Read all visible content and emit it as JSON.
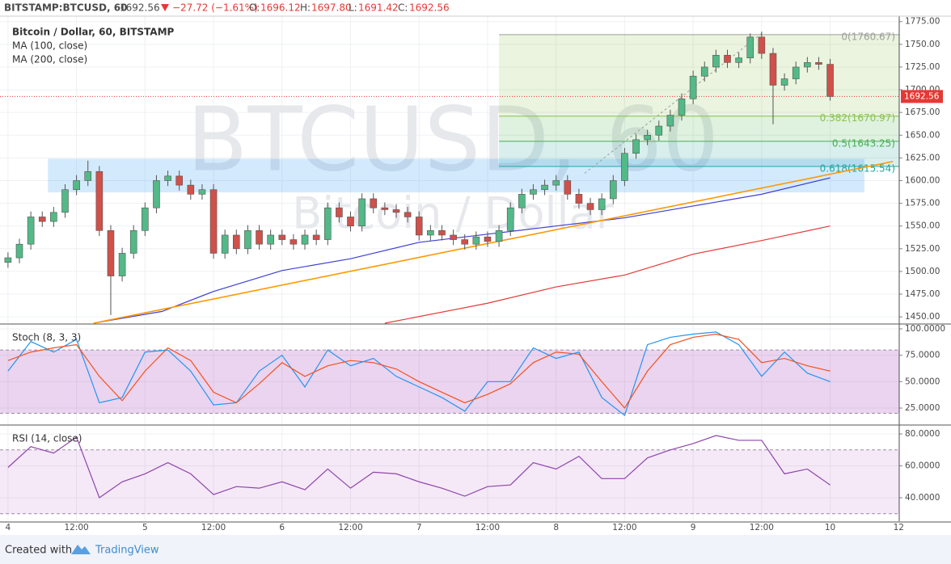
{
  "header": {
    "symbol": "BITSTAMP:BTCUSD, 60",
    "last": "1692.56",
    "change": "−27.72 (−1.61%)",
    "open_label": "O:",
    "open": "1696.12",
    "high_label": "H:",
    "high": "1697.80",
    "low_label": "L:",
    "low": "1691.42",
    "close_label": "C:",
    "close": "1692.56"
  },
  "footer": {
    "text": "Created with",
    "brand": "TradingView"
  },
  "chart_data": [
    {
      "type": "candlestick",
      "title": "Bitcoin / Dollar, 60, BITSTAMP",
      "watermark": "BTCUSD, 60",
      "watermark_subtitle": "Bitcoin / Dollar",
      "up_color": "#53b987",
      "down_color": "#d0504a",
      "x": [
        0,
        2,
        4,
        6,
        8,
        10,
        12,
        14,
        16,
        18,
        20,
        22,
        24,
        26,
        28,
        30,
        32,
        34,
        36,
        38,
        40,
        42,
        44,
        46,
        48,
        50,
        52,
        54,
        56,
        58,
        60,
        62,
        64,
        66,
        68,
        70,
        72,
        74,
        76,
        78,
        80,
        82,
        84,
        86,
        88,
        90,
        92,
        94,
        96,
        98,
        100,
        102,
        104,
        106,
        108,
        110,
        112,
        114,
        116,
        118,
        120,
        122,
        124,
        126,
        128,
        130,
        132,
        134,
        136,
        138,
        140,
        142,
        144
      ],
      "open": [
        1510,
        1515,
        1530,
        1560,
        1555,
        1565,
        1590,
        1600,
        1610,
        1545,
        1495,
        1520,
        1545,
        1570,
        1600,
        1605,
        1595,
        1585,
        1590,
        1520,
        1540,
        1525,
        1545,
        1530,
        1540,
        1535,
        1530,
        1540,
        1535,
        1570,
        1560,
        1550,
        1580,
        1570,
        1568,
        1565,
        1560,
        1540,
        1545,
        1540,
        1535,
        1530,
        1538,
        1533,
        1545,
        1570,
        1585,
        1590,
        1595,
        1600,
        1585,
        1575,
        1568,
        1580,
        1600,
        1630,
        1645,
        1650,
        1660,
        1672,
        1690,
        1715,
        1725,
        1738,
        1730,
        1735,
        1758,
        1740,
        1705,
        1712,
        1725,
        1730,
        1728
      ],
      "high": [
        1521,
        1536,
        1566,
        1566,
        1571,
        1596,
        1606,
        1622,
        1616,
        1551,
        1526,
        1551,
        1576,
        1606,
        1611,
        1611,
        1601,
        1596,
        1596,
        1546,
        1546,
        1551,
        1551,
        1546,
        1546,
        1541,
        1546,
        1546,
        1576,
        1576,
        1566,
        1586,
        1586,
        1576,
        1574,
        1571,
        1566,
        1551,
        1551,
        1546,
        1541,
        1544,
        1544,
        1551,
        1576,
        1591,
        1596,
        1601,
        1606,
        1606,
        1591,
        1581,
        1586,
        1606,
        1636,
        1651,
        1656,
        1666,
        1678,
        1696,
        1721,
        1731,
        1744,
        1744,
        1741,
        1762,
        1764,
        1746,
        1718,
        1731,
        1736,
        1736,
        1734
      ],
      "low": [
        1504,
        1509,
        1524,
        1549,
        1549,
        1559,
        1584,
        1594,
        1539,
        1452,
        1489,
        1514,
        1539,
        1564,
        1594,
        1589,
        1579,
        1579,
        1514,
        1514,
        1519,
        1519,
        1524,
        1524,
        1529,
        1524,
        1524,
        1529,
        1529,
        1554,
        1544,
        1544,
        1564,
        1562,
        1559,
        1554,
        1534,
        1534,
        1534,
        1529,
        1524,
        1524,
        1527,
        1527,
        1539,
        1564,
        1579,
        1584,
        1589,
        1579,
        1569,
        1562,
        1562,
        1574,
        1594,
        1624,
        1639,
        1644,
        1654,
        1666,
        1684,
        1709,
        1719,
        1724,
        1724,
        1729,
        1734,
        1662,
        1699,
        1706,
        1719,
        1722,
        1688
      ],
      "close": [
        1515,
        1530,
        1560,
        1555,
        1565,
        1590,
        1600,
        1610,
        1545,
        1495,
        1520,
        1545,
        1570,
        1600,
        1605,
        1595,
        1585,
        1590,
        1520,
        1540,
        1525,
        1545,
        1530,
        1540,
        1535,
        1530,
        1540,
        1535,
        1570,
        1560,
        1550,
        1580,
        1570,
        1568,
        1565,
        1560,
        1540,
        1545,
        1540,
        1535,
        1530,
        1538,
        1533,
        1545,
        1570,
        1585,
        1590,
        1595,
        1600,
        1585,
        1575,
        1568,
        1580,
        1600,
        1630,
        1645,
        1650,
        1660,
        1672,
        1690,
        1715,
        1725,
        1738,
        1730,
        1735,
        1758,
        1740,
        1705,
        1712,
        1725,
        1730,
        1728,
        1692.56
      ],
      "series": [
        {
          "name": "MA (100, close)",
          "color": "#3f3fd6",
          "x": [
            15,
            27,
            36,
            48,
            60,
            72,
            84,
            96,
            108,
            120,
            132,
            144
          ],
          "values": [
            1443,
            1456,
            1478,
            1501,
            1514,
            1532,
            1541,
            1550,
            1559,
            1572,
            1585,
            1603
          ]
        },
        {
          "name": "MA (200, close)",
          "color": "#e53935",
          "x": [
            66,
            84,
            96,
            108,
            120,
            132,
            144
          ],
          "values": [
            1443,
            1465,
            1483,
            1496,
            1519,
            1534,
            1550
          ]
        }
      ],
      "trendline": {
        "color": "#ff9800",
        "x": [
          15,
          155
        ],
        "values": [
          1443,
          1621
        ]
      },
      "zone": {
        "color": "#2196f3",
        "x": [
          7,
          150
        ],
        "values": [
          1587,
          1624
        ]
      },
      "fib_trend": {
        "color": "#9e9e9e",
        "x": [
          101,
          132
        ],
        "values": [
          1608,
          1762
        ]
      },
      "fib_x": [
        86,
        156.1
      ],
      "fib_levels": [
        {
          "value": 1760.67,
          "label": "0(1760.67)",
          "color": "#9e9e9e"
        },
        {
          "value": 1670.97,
          "label": "0.382(1670.97)",
          "color": "#8bc34a"
        },
        {
          "value": 1643.25,
          "label": "0.5(1643.25)",
          "color": "#4caf50"
        },
        {
          "value": 1615.54,
          "label": "0.618(1615.54)",
          "color": "#26a69a"
        }
      ],
      "last_price": {
        "value": 1692.56,
        "label": "1692.56",
        "color": "#e53935"
      },
      "xlim": [
        -1.4,
        156.1
      ],
      "ylim": [
        1443,
        1781
      ],
      "yticks": [
        {
          "value": 1450,
          "label": "1450.00"
        },
        {
          "value": 1475,
          "label": "1475.00"
        },
        {
          "value": 1500,
          "label": "1500.00"
        },
        {
          "value": 1525,
          "label": "1525.00"
        },
        {
          "value": 1550,
          "label": "1550.00"
        },
        {
          "value": 1575,
          "label": "1575.00"
        },
        {
          "value": 1600,
          "label": "1600.00"
        },
        {
          "value": 1625,
          "label": "1625.00"
        },
        {
          "value": 1650,
          "label": "1650.00"
        },
        {
          "value": 1675,
          "label": "1675.00"
        },
        {
          "value": 1700,
          "label": "1700.00"
        },
        {
          "value": 1725,
          "label": "1725.00"
        },
        {
          "value": 1750,
          "label": "1750.00"
        },
        {
          "value": 1775,
          "label": "1775.00"
        }
      ],
      "grid": true
    },
    {
      "type": "line",
      "title": "Stoch (8, 3, 3)",
      "band": [
        20,
        80
      ],
      "band_color": "#9c27b0",
      "x": [
        0,
        4,
        8,
        12,
        16,
        20,
        24,
        28,
        32,
        36,
        40,
        44,
        48,
        52,
        56,
        60,
        64,
        68,
        72,
        76,
        80,
        84,
        88,
        92,
        96,
        100,
        104,
        108,
        112,
        116,
        120,
        124,
        128,
        132,
        136,
        140,
        144
      ],
      "series": [
        {
          "color": "#2196f3",
          "values": [
            60,
            88,
            78,
            90,
            30,
            35,
            78,
            80,
            60,
            28,
            30,
            60,
            75,
            45,
            80,
            65,
            72,
            55,
            45,
            35,
            22,
            50,
            50,
            82,
            72,
            78,
            35,
            18,
            85,
            92,
            95,
            97,
            85,
            55,
            78,
            58,
            50
          ]
        },
        {
          "color": "#f4511e",
          "values": [
            70,
            78,
            82,
            85,
            55,
            32,
            60,
            82,
            70,
            40,
            30,
            48,
            68,
            55,
            65,
            70,
            68,
            62,
            50,
            40,
            30,
            38,
            48,
            68,
            78,
            76,
            50,
            25,
            60,
            85,
            92,
            95,
            90,
            68,
            72,
            65,
            60
          ]
        }
      ],
      "xlim": [
        -1.4,
        156.1
      ],
      "ylim": [
        9.7,
        103.8
      ],
      "yticks": [
        {
          "value": 25,
          "label": "25.0000"
        },
        {
          "value": 50,
          "label": "50.0000"
        },
        {
          "value": 75,
          "label": "75.0000"
        },
        {
          "value": 100,
          "label": "100.0000"
        }
      ]
    },
    {
      "type": "line",
      "title": "RSI (14, close)",
      "band": [
        30,
        70
      ],
      "band_color": "#9c27b0",
      "x": [
        0,
        4,
        8,
        12,
        16,
        20,
        24,
        28,
        32,
        36,
        40,
        44,
        48,
        52,
        56,
        60,
        64,
        68,
        72,
        76,
        80,
        84,
        88,
        92,
        96,
        100,
        104,
        108,
        112,
        116,
        120,
        124,
        128,
        132,
        136,
        140,
        144
      ],
      "series": [
        {
          "color": "#8e44ad",
          "values": [
            59,
            72,
            68,
            78,
            40,
            50,
            55,
            62,
            55,
            42,
            47,
            46,
            50,
            45,
            58,
            46,
            56,
            55,
            50,
            46,
            41,
            47,
            48,
            62,
            58,
            66,
            52,
            52,
            65,
            70,
            74,
            79,
            76,
            76,
            55,
            58,
            48
          ]
        }
      ],
      "xlim": [
        -1.4,
        156.1
      ],
      "ylim": [
        25.3,
        85.1
      ],
      "yticks": [
        {
          "value": 40,
          "label": "40.0000"
        },
        {
          "value": 60,
          "label": "60.0000"
        },
        {
          "value": 80,
          "label": "80.0000"
        }
      ],
      "xticks": [
        {
          "value": 0,
          "label": "4"
        },
        {
          "value": 12,
          "label": "12:00"
        },
        {
          "value": 24,
          "label": "5"
        },
        {
          "value": 36,
          "label": "12:00"
        },
        {
          "value": 48,
          "label": "6"
        },
        {
          "value": 60,
          "label": "12:00"
        },
        {
          "value": 72,
          "label": "7"
        },
        {
          "value": 84,
          "label": "12:00"
        },
        {
          "value": 96,
          "label": "8"
        },
        {
          "value": 108,
          "label": "12:00"
        },
        {
          "value": 120,
          "label": "9"
        },
        {
          "value": 132,
          "label": "12:00"
        },
        {
          "value": 144,
          "label": "10"
        },
        {
          "value": 156,
          "label": "12"
        }
      ]
    }
  ]
}
